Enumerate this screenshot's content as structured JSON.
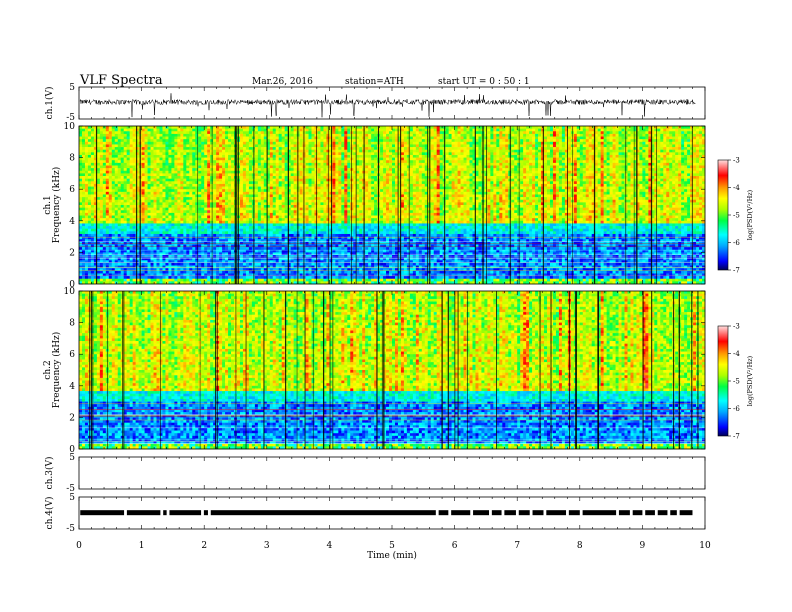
{
  "header": {
    "title": "VLF  Spectra",
    "date": "Mar.26, 2016",
    "station": "station=ATH",
    "start": "start  UT =   0 : 50 : 1"
  },
  "chart_data": [
    {
      "type": "line",
      "panel": "ch1-waveform",
      "ylabel": "ch.1(V)",
      "ylim": [
        -5,
        5
      ],
      "yticks": [
        "5",
        "-5"
      ],
      "x_range_min": [
        0,
        9.85
      ],
      "baseline_v": 0.3,
      "color": "#000000"
    },
    {
      "type": "heatmap",
      "panel": "ch1-spectrogram",
      "ylabel": "ch.1\nFrequency  (kHz)",
      "ylim": [
        0,
        10
      ],
      "yticks": [
        "0",
        "2",
        "4",
        "6",
        "8",
        "10"
      ],
      "colorbar": {
        "label": "log(PSD(V²/Hz)",
        "range": [
          -7,
          -3
        ],
        "ticks": [
          "-3",
          "-4",
          "-5",
          "-6",
          "-7"
        ]
      }
    },
    {
      "type": "heatmap",
      "panel": "ch2-spectrogram",
      "ylabel": "ch.2\nFrequency  (kHz)",
      "ylim": [
        0,
        10
      ],
      "yticks": [
        "0",
        "2",
        "4",
        "6",
        "8",
        "10"
      ],
      "colorbar": {
        "label": "log(PSD(V²/Hz)",
        "range": [
          -7,
          -3
        ],
        "ticks": [
          "-3",
          "-4",
          "-5",
          "-6",
          "-7"
        ]
      }
    },
    {
      "type": "line",
      "panel": "ch3-waveform",
      "ylabel": "ch.3(V)",
      "ylim": [
        -5,
        5
      ],
      "yticks": [
        "5",
        "-5"
      ],
      "color": "#000000"
    },
    {
      "type": "line",
      "panel": "ch4-waveform",
      "ylabel": "ch.4(V)",
      "ylim": [
        -5,
        5
      ],
      "yticks": [
        "5",
        "-5"
      ],
      "signal_level_v": 0.1,
      "gaps_min": [
        0.72,
        1.3,
        1.4,
        1.95,
        2.06,
        5.7,
        5.9,
        6.25,
        6.55,
        6.75,
        6.98,
        7.2,
        7.42,
        7.78,
        8.0,
        8.58,
        8.8,
        9.0,
        9.2,
        9.4,
        9.55
      ]
    }
  ],
  "xaxis": {
    "label": "Time  (min)",
    "range": [
      0,
      10
    ],
    "ticks": [
      "0",
      "1",
      "2",
      "3",
      "4",
      "5",
      "6",
      "7",
      "8",
      "9",
      "10"
    ]
  }
}
